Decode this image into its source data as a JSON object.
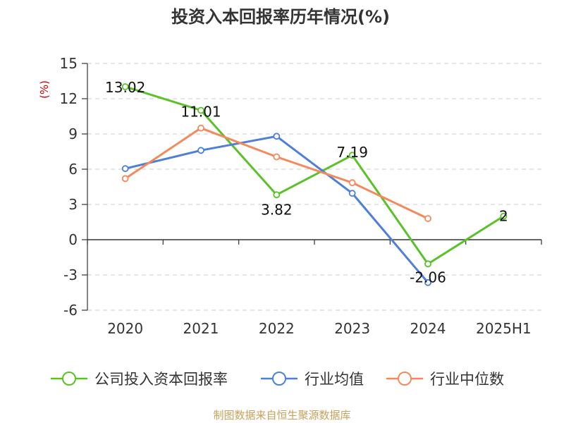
{
  "colors": {
    "company": "#5ac229",
    "industry_avg": "#4e7fd9",
    "industry_median": "#f48a5c",
    "grid": "#cccccc",
    "axis": "#333333",
    "unit": "#cc0000",
    "source": "#c8a15a"
  },
  "footer": {
    "source": "制图数据来自恒生聚源数据库"
  },
  "chart_data": {
    "type": "line",
    "title": "投资入本回报率历年情况(%)",
    "ylabel": "(%)",
    "xlabel": "",
    "categories": [
      "2020",
      "2021",
      "2022",
      "2023",
      "2024",
      "2025H1"
    ],
    "ylim": [
      -6,
      15
    ],
    "yticks": [
      "15",
      "12",
      "9",
      "6",
      "3",
      "0",
      "-3",
      "-6"
    ],
    "grid": true,
    "legend_position": "bottom",
    "series": [
      {
        "name": "公司投入资本回报率",
        "values": [
          13.02,
          11.01,
          3.82,
          7.19,
          -2.06,
          2
        ],
        "data_labels": [
          "13.02",
          "11.01",
          "3.82",
          "7.19",
          "-2.06",
          "2"
        ]
      },
      {
        "name": "行业均值",
        "values": [
          6.05,
          7.6,
          8.8,
          3.95,
          -3.65,
          null
        ]
      },
      {
        "name": "行业中位数",
        "values": [
          5.2,
          9.5,
          7.05,
          4.85,
          1.8,
          null
        ]
      }
    ]
  }
}
